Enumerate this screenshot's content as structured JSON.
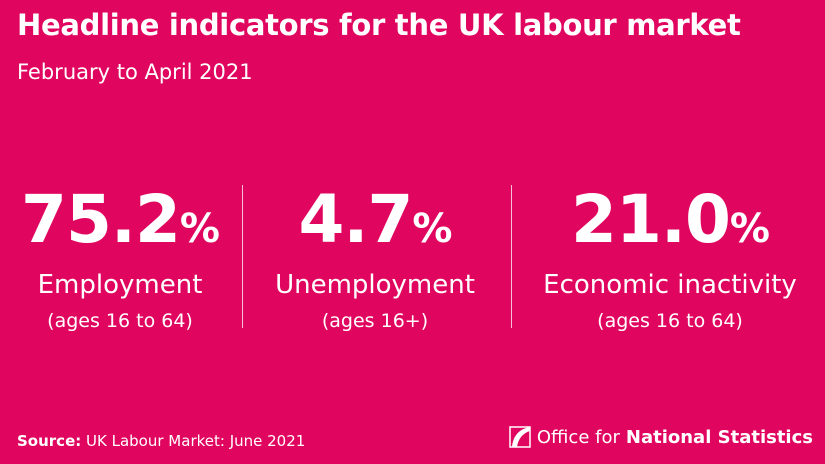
{
  "header": {
    "title": "Headline indicators for the UK labour market",
    "subtitle": "February to April 2021"
  },
  "indicators": [
    {
      "value": "75.2",
      "unit": "%",
      "label": "Employment",
      "note": "(ages 16 to 64)"
    },
    {
      "value": "4.7",
      "unit": "%",
      "label": "Unemployment",
      "note": "(ages 16+)"
    },
    {
      "value": "21.0",
      "unit": "%",
      "label": "Economic inactivity",
      "note": "(ages 16 to 64)"
    }
  ],
  "footer": {
    "source_label": "Source:",
    "source_text": "UK Labour Market: June 2021",
    "logo_text_regular": "Office for",
    "logo_text_bold": "National Statistics"
  },
  "colors": {
    "background": "#E0065F",
    "text": "#FFFFFF"
  }
}
